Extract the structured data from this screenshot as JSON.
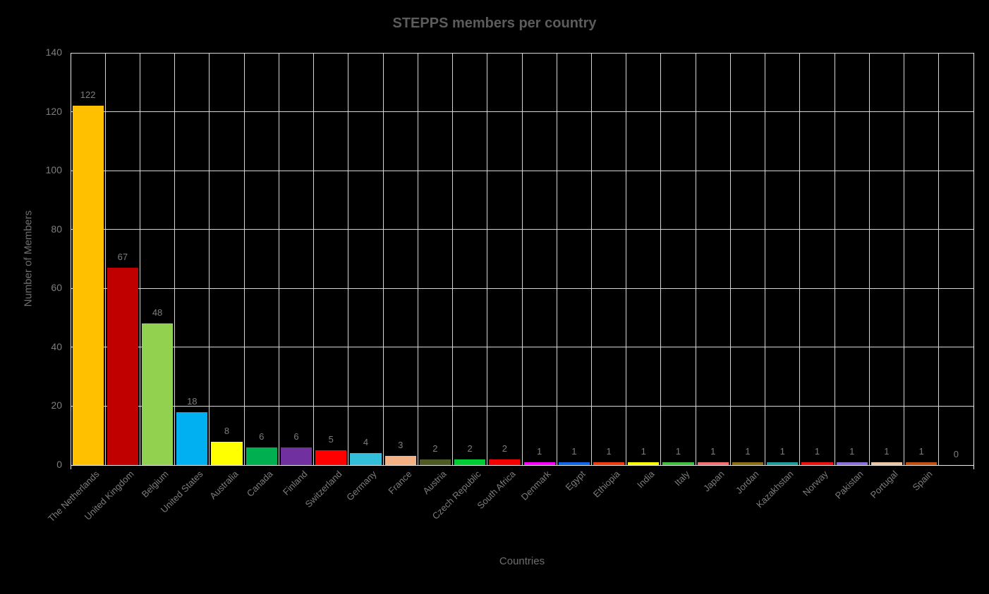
{
  "title": "STEPPS members per country",
  "colors": {
    "background": "#000000",
    "gridline": "#d6d6d6",
    "axis_line": "#e9e9e9",
    "title_text": "#5c5c5c",
    "axis_title_text": "#6e6e6e",
    "tick_text": "#7d7d7d",
    "value_label_text": "#7d7d7d"
  },
  "chart_data": {
    "type": "bar",
    "title": "STEPPS members per country",
    "xlabel": "Countries",
    "ylabel": "Number of Members",
    "ylim": [
      0,
      140
    ],
    "ytick_step": 20,
    "ytick_labels": [
      "0",
      "20",
      "40",
      "60",
      "80",
      "100",
      "120",
      "140"
    ],
    "grid": true,
    "legend": "none",
    "categories": [
      "The Netherlands",
      "United Kingdom",
      "Belgium",
      "United States",
      "Australia",
      "Canada",
      "Finland",
      "Switzerland",
      "Germany",
      "France",
      "Austria",
      "Czech Republic",
      "South Africa",
      "Denmark",
      "Egypt",
      "Ethiopia",
      "India",
      "Italy",
      "Japan",
      "Jordan",
      "Kazakhstan",
      "Norway",
      "Pakistan",
      "Portugal",
      "Spain",
      ""
    ],
    "values": [
      122,
      67,
      48,
      18,
      8,
      6,
      6,
      5,
      4,
      3,
      2,
      2,
      2,
      1,
      1,
      1,
      1,
      1,
      1,
      1,
      1,
      1,
      1,
      1,
      1,
      0
    ],
    "data_labels": [
      "122",
      "67",
      "48",
      "18",
      "8",
      "6",
      "6",
      "5",
      "4",
      "3",
      "2",
      "2",
      "2",
      "1",
      "1",
      "1",
      "1",
      "1",
      "1",
      "1",
      "1",
      "1",
      "1",
      "1",
      "1",
      "0"
    ],
    "bar_colors": [
      "#FFC000",
      "#C00000",
      "#92D050",
      "#00B0F0",
      "#FFFF00",
      "#00B050",
      "#7030A0",
      "#FF0000",
      "#33BFDA",
      "#F4B183",
      "#4D5A22",
      "#00CC33",
      "#F40000",
      "#FF00FF",
      "#1166E8",
      "#F03C0C",
      "#FCFC00",
      "#3FBF3F",
      "#F07070",
      "#8E6E13",
      "#1E9C9C",
      "#ED1111",
      "#8A70D8",
      "#EAC5A2",
      "#C14F12",
      "#000000"
    ]
  }
}
